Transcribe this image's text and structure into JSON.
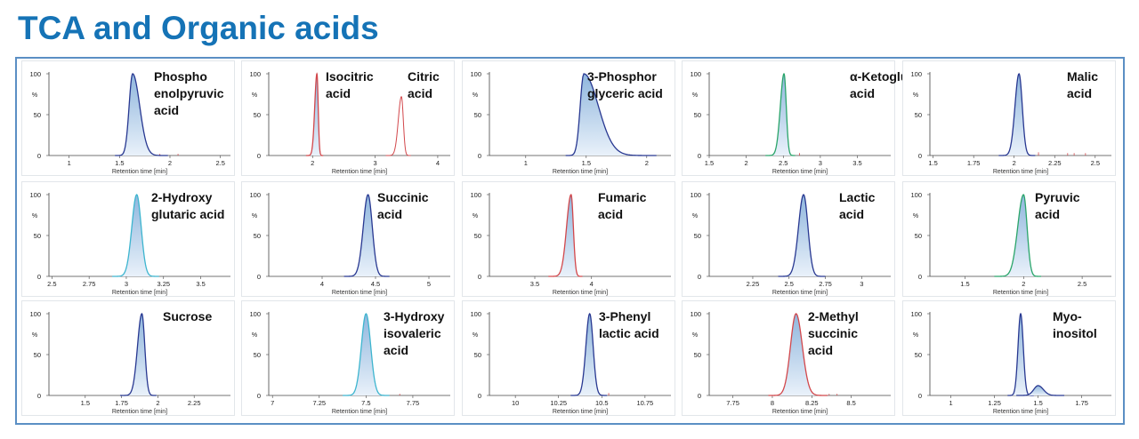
{
  "page": {
    "title": "TCA and Organic acids"
  },
  "axis": {
    "y_ticks": [
      "100",
      "50",
      "0"
    ],
    "y_unit": "%",
    "x_label": "Retention time [min]"
  },
  "colors": {
    "dark": "#283891",
    "red": "#d2474b",
    "teal": "#3db5cf",
    "green": "#2aa56a",
    "fill_top": "#8fb6dd",
    "fill_bottom": "#e9f1fa"
  },
  "chart_data": [
    {
      "type": "line",
      "label": "Phospho\nenolpyruvic\nacid",
      "xlim": [
        0.8,
        2.6
      ],
      "ticks": [
        1,
        1.5,
        2,
        2.5
      ],
      "tick_labels": [
        "1",
        "1.5",
        "2",
        "2.5"
      ],
      "peaks": [
        {
          "rt": 1.63,
          "height": 100,
          "width": 0.035,
          "tail": 0.07,
          "color": "dark",
          "fill": true
        }
      ],
      "noise": [
        [
          1.55,
          4
        ],
        [
          1.75,
          3
        ],
        [
          1.9,
          2
        ],
        [
          2.08,
          2
        ]
      ]
    },
    {
      "type": "line",
      "label": "Isocitric\nacid",
      "label2": "Citric\nacid",
      "xlim": [
        1.3,
        4.2
      ],
      "ticks": [
        2,
        3,
        4
      ],
      "tick_labels": [
        "2",
        "3",
        "4"
      ],
      "peaks": [
        {
          "rt": 2.07,
          "height": 100,
          "width": 0.035,
          "tail": 0.02,
          "color": "red",
          "fill": true
        },
        {
          "rt": 3.42,
          "height": 72,
          "width": 0.05,
          "tail": 0.03,
          "color": "red",
          "fill": false
        }
      ],
      "noise": []
    },
    {
      "type": "line",
      "label": "3-Phosphor\nglyceric acid",
      "xlim": [
        0.7,
        2.2
      ],
      "ticks": [
        1,
        1.5,
        2
      ],
      "tick_labels": [
        "1",
        "1.5",
        "2"
      ],
      "peaks": [
        {
          "rt": 1.48,
          "height": 100,
          "width": 0.03,
          "tail": 0.12,
          "color": "dark",
          "fill": true
        }
      ],
      "noise": []
    },
    {
      "type": "line",
      "label": "α-Ketoglutaric\nacid",
      "xlim": [
        1.5,
        3.95
      ],
      "ticks": [
        1.5,
        2,
        2.5,
        3,
        3.5
      ],
      "tick_labels": [
        "1.5",
        "2",
        "2.5",
        "3",
        "3.5"
      ],
      "peaks": [
        {
          "rt": 2.51,
          "height": 100,
          "width": 0.05,
          "tail": 0.03,
          "color": "green",
          "fill": true
        }
      ],
      "noise": [
        [
          2.72,
          3
        ]
      ]
    },
    {
      "type": "line",
      "label": "Malic\nacid",
      "xlim": [
        1.48,
        2.6
      ],
      "ticks": [
        1.5,
        1.75,
        2,
        2.25,
        2.5
      ],
      "tick_labels": [
        "1.5",
        "1.75",
        "2",
        "2.25",
        "2.5"
      ],
      "peaks": [
        {
          "rt": 2.03,
          "height": 100,
          "width": 0.025,
          "tail": 0.02,
          "color": "dark",
          "fill": true
        }
      ],
      "noise": [
        [
          2.15,
          4
        ],
        [
          2.33,
          3
        ],
        [
          2.37,
          3
        ],
        [
          2.44,
          3
        ]
      ]
    },
    {
      "type": "line",
      "label": "2-Hydroxy\nglutaric acid",
      "xlim": [
        2.48,
        3.7
      ],
      "ticks": [
        2.5,
        2.75,
        3,
        3.25,
        3.5
      ],
      "tick_labels": [
        "2.5",
        "2.75",
        "3",
        "3.25",
        "3.5"
      ],
      "peaks": [
        {
          "rt": 3.07,
          "height": 100,
          "width": 0.033,
          "tail": 0.03,
          "color": "teal",
          "fill": true
        }
      ],
      "noise": []
    },
    {
      "type": "line",
      "label": "Succinic\nacid",
      "xlim": [
        3.5,
        5.2
      ],
      "ticks": [
        4,
        4.5,
        5
      ],
      "tick_labels": [
        "4",
        "4.5",
        "5"
      ],
      "peaks": [
        {
          "rt": 4.43,
          "height": 100,
          "width": 0.045,
          "tail": 0.04,
          "color": "dark",
          "fill": true
        }
      ],
      "noise": []
    },
    {
      "type": "line",
      "label": "Fumaric\nacid",
      "xlim": [
        3.1,
        4.7
      ],
      "ticks": [
        3.5,
        4
      ],
      "tick_labels": [
        "3.5",
        "4"
      ],
      "peaks": [
        {
          "rt": 3.82,
          "height": 100,
          "width": 0.04,
          "tail": 0.02,
          "color": "red",
          "fill": true
        }
      ],
      "noise": []
    },
    {
      "type": "line",
      "label": "Lactic\nacid",
      "xlim": [
        1.95,
        3.2
      ],
      "ticks": [
        2.25,
        2.5,
        2.75,
        3
      ],
      "tick_labels": [
        "2.25",
        "2.5",
        "2.75",
        "3"
      ],
      "peaks": [
        {
          "rt": 2.6,
          "height": 100,
          "width": 0.035,
          "tail": 0.03,
          "color": "dark",
          "fill": true
        }
      ],
      "noise": []
    },
    {
      "type": "line",
      "label": "Pyruvic\nacid",
      "xlim": [
        1.2,
        2.75
      ],
      "ticks": [
        1.5,
        2,
        2.5
      ],
      "tick_labels": [
        "1.5",
        "2",
        "2.5"
      ],
      "peaks": [
        {
          "rt": 2.0,
          "height": 100,
          "width": 0.05,
          "tail": 0.03,
          "color": "green",
          "fill": true
        }
      ],
      "noise": []
    },
    {
      "type": "line",
      "label": "Sucrose",
      "xlim": [
        1.25,
        2.5
      ],
      "ticks": [
        1.5,
        1.75,
        2,
        2.25
      ],
      "tick_labels": [
        "1.5",
        "1.75",
        "2",
        "2.25"
      ],
      "peaks": [
        {
          "rt": 1.89,
          "height": 100,
          "width": 0.03,
          "tail": 0.02,
          "color": "dark",
          "fill": true
        }
      ],
      "noise": []
    },
    {
      "type": "line",
      "label": "3-Hydroxy\nisovaleric\nacid",
      "xlim": [
        6.98,
        7.95
      ],
      "ticks": [
        7,
        7.25,
        7.5,
        7.75
      ],
      "tick_labels": [
        "7",
        "7.25",
        "7.5",
        "7.75"
      ],
      "peaks": [
        {
          "rt": 7.5,
          "height": 100,
          "width": 0.025,
          "tail": 0.025,
          "color": "teal",
          "fill": true
        }
      ],
      "noise": [
        [
          7.68,
          2
        ]
      ]
    },
    {
      "type": "line",
      "label": "3-Phenyl\nlactic acid",
      "xlim": [
        9.85,
        10.9
      ],
      "ticks": [
        10,
        10.25,
        10.5,
        10.75
      ],
      "tick_labels": [
        "10",
        "10.25",
        "10.5",
        "10.75"
      ],
      "peaks": [
        {
          "rt": 10.43,
          "height": 100,
          "width": 0.022,
          "tail": 0.02,
          "color": "dark",
          "fill": true
        }
      ],
      "noise": [
        [
          10.54,
          3
        ]
      ]
    },
    {
      "type": "line",
      "label": "2-Methyl\nsuccinic\nacid",
      "xlim": [
        7.6,
        8.75
      ],
      "ticks": [
        7.75,
        8,
        8.25,
        8.5
      ],
      "tick_labels": [
        "7.75",
        "8",
        "8.25",
        "8.5"
      ],
      "peaks": [
        {
          "rt": 8.15,
          "height": 100,
          "width": 0.035,
          "tail": 0.04,
          "color": "red",
          "fill": true
        }
      ],
      "noise": [
        [
          8.36,
          2
        ],
        [
          8.41,
          2
        ]
      ]
    },
    {
      "type": "line",
      "label": "Myo-\ninositol",
      "xlim": [
        0.88,
        1.92
      ],
      "ticks": [
        1,
        1.25,
        1.5,
        1.75
      ],
      "tick_labels": [
        "1",
        "1.25",
        "1.5",
        "1.75"
      ],
      "peaks": [
        {
          "rt": 1.4,
          "height": 100,
          "width": 0.015,
          "tail": 0.015,
          "color": "dark",
          "fill": true
        },
        {
          "rt": 1.5,
          "height": 12,
          "width": 0.025,
          "tail": 0.03,
          "color": "dark",
          "fill": true
        }
      ],
      "noise": []
    }
  ]
}
